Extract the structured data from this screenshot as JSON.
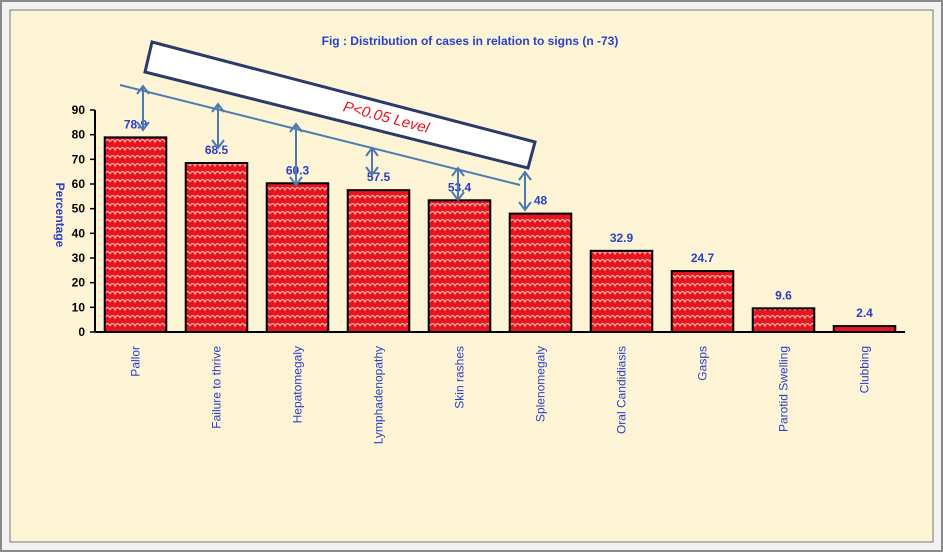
{
  "chart_data": {
    "type": "bar",
    "title": "Fig : Distribution of cases in relation to signs (n -73)",
    "y_label": "Percentage",
    "annotation": "P<0.05 Level",
    "categories": [
      "Pallor",
      "Failure to thrive",
      "Hepatomegaly",
      "Lymphadenopathy",
      "Skin rashes",
      "Splenomegaly",
      "Oral Candidiasis",
      "Gasps",
      "Parotid Swelling",
      "Clubbing"
    ],
    "values": [
      78.9,
      68.5,
      60.3,
      57.5,
      53.4,
      48,
      32.9,
      24.7,
      9.6,
      2.4
    ],
    "color": "#e8141c",
    "ylim": [
      0,
      90
    ],
    "yticks": [
      0,
      10,
      20,
      30,
      40,
      50,
      60,
      70,
      80,
      90
    ]
  }
}
